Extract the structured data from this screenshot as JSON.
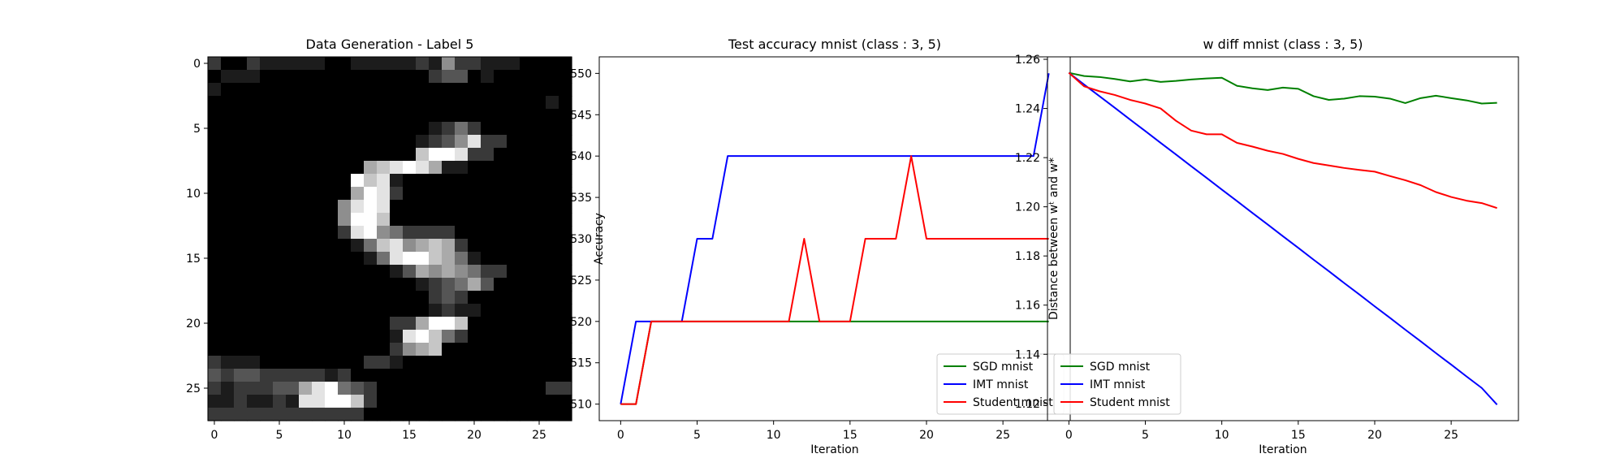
{
  "chart_data": [
    {
      "type": "heatmap",
      "title": "Data Generation - Label 5",
      "colormap": "gray",
      "xticks": [
        0,
        5,
        10,
        15,
        20,
        25
      ],
      "yticks": [
        0,
        5,
        10,
        15,
        20,
        25
      ],
      "grid_size": [
        28,
        28
      ],
      "grid": [
        "2002111110011111215221110000",
        "0111000000000000023301000000",
        "1000000000000000000000000000",
        "0000000000000000000000000010",
        "0000000000000000000000000000",
        "0000000000000000012420000000",
        "0000000000000000123582200000",
        "0000000000000000799822000000",
        "0000000000006789861100000000",
        "0000000000097810000000000000",
        "0000000000069820000000000000",
        "0000000000589800000000000000",
        "0000000000599700000000000000",
        "0000000000289542222000000000",
        "0000000000014785676200000000",
        "0000000000001489976410000000",
        "0000000000000013656542200000",
        "0000000000000000123463000000",
        "0000000000000000023200000000",
        "0000000000000000012110000000",
        "0000000000000022699700000000",
        "0000000000000018974200000000",
        "0000000000000025670000000000",
        "2111000000002210000000000000",
        "3233222221200000000000000000",
        "2122233689432000000000000022",
        "1121121889972000000000000000",
        "2222222222220000000000000000"
      ]
    },
    {
      "type": "line",
      "title": "Test accuracy mnist (class : 3, 5)",
      "xlabel": "Iteration",
      "ylabel": "Accuracy",
      "xlim": [
        -1.4,
        29.4
      ],
      "ylim": [
        0.508,
        0.552
      ],
      "xticks": [
        0,
        5,
        10,
        15,
        20,
        25
      ],
      "yticks": [
        0.51,
        0.515,
        0.52,
        0.525,
        0.53,
        0.535,
        0.54,
        0.545,
        0.55
      ],
      "legend_position": "lower-right",
      "x": [
        0,
        1,
        2,
        3,
        4,
        5,
        6,
        7,
        8,
        9,
        10,
        11,
        12,
        13,
        14,
        15,
        16,
        17,
        18,
        19,
        20,
        21,
        22,
        23,
        24,
        25,
        26,
        27,
        28
      ],
      "series": [
        {
          "name": "SGD mnist",
          "color": "#008000",
          "values": [
            0.51,
            0.51,
            0.52,
            0.52,
            0.52,
            0.52,
            0.52,
            0.52,
            0.52,
            0.52,
            0.52,
            0.52,
            0.52,
            0.52,
            0.52,
            0.52,
            0.52,
            0.52,
            0.52,
            0.52,
            0.52,
            0.52,
            0.52,
            0.52,
            0.52,
            0.52,
            0.52,
            0.52,
            0.52
          ]
        },
        {
          "name": "IMT mnist",
          "color": "#0000ff",
          "values": [
            0.51,
            0.52,
            0.52,
            0.52,
            0.52,
            0.53,
            0.53,
            0.54,
            0.54,
            0.54,
            0.54,
            0.54,
            0.54,
            0.54,
            0.54,
            0.54,
            0.54,
            0.54,
            0.54,
            0.54,
            0.54,
            0.54,
            0.54,
            0.54,
            0.54,
            0.54,
            0.54,
            0.54,
            0.55
          ]
        },
        {
          "name": "Student mnist",
          "color": "#ff0000",
          "values": [
            0.51,
            0.51,
            0.52,
            0.52,
            0.52,
            0.52,
            0.52,
            0.52,
            0.52,
            0.52,
            0.52,
            0.52,
            0.53,
            0.52,
            0.52,
            0.52,
            0.53,
            0.53,
            0.53,
            0.54,
            0.53,
            0.53,
            0.53,
            0.53,
            0.53,
            0.53,
            0.53,
            0.53,
            0.53
          ]
        }
      ]
    },
    {
      "type": "line",
      "title": "w diff mnist (class : 3, 5)",
      "xlabel": "Iteration",
      "ylabel": "Distance between wᵗ and w*",
      "xlim": [
        -1.4,
        29.4
      ],
      "ylim": [
        1.113,
        1.261
      ],
      "xticks": [
        0,
        5,
        10,
        15,
        20,
        25
      ],
      "yticks": [
        1.12,
        1.14,
        1.16,
        1.18,
        1.2,
        1.22,
        1.24,
        1.26
      ],
      "legend_position": "lower-left",
      "x": [
        0,
        1,
        2,
        3,
        4,
        5,
        6,
        7,
        8,
        9,
        10,
        11,
        12,
        13,
        14,
        15,
        16,
        17,
        18,
        19,
        20,
        21,
        22,
        23,
        24,
        25,
        26,
        27,
        28
      ],
      "series": [
        {
          "name": "SGD mnist",
          "color": "#008000",
          "values": [
            1.2545,
            1.2532,
            1.2528,
            1.252,
            1.251,
            1.2518,
            1.2508,
            1.2512,
            1.2518,
            1.2522,
            1.2525,
            1.2492,
            1.2482,
            1.2475,
            1.2485,
            1.248,
            1.245,
            1.2435,
            1.244,
            1.245,
            1.2448,
            1.244,
            1.2422,
            1.2442,
            1.2452,
            1.2442,
            1.2433,
            1.242,
            1.2423
          ]
        },
        {
          "name": "IMT mnist",
          "color": "#0000ff",
          "values": [
            1.2545,
            1.2497,
            1.245,
            1.2403,
            1.2355,
            1.2308,
            1.226,
            1.2213,
            1.2165,
            1.2118,
            1.207,
            1.2023,
            1.1975,
            1.1928,
            1.188,
            1.1833,
            1.1785,
            1.1738,
            1.169,
            1.1643,
            1.1595,
            1.1548,
            1.15,
            1.1453,
            1.1405,
            1.1358,
            1.131,
            1.1263,
            1.1195
          ]
        },
        {
          "name": "Student mnist",
          "color": "#ff0000",
          "values": [
            1.2545,
            1.249,
            1.247,
            1.2455,
            1.2435,
            1.242,
            1.24,
            1.235,
            1.231,
            1.2295,
            1.2295,
            1.226,
            1.2245,
            1.2228,
            1.2215,
            1.2195,
            1.2178,
            1.2168,
            1.2158,
            1.215,
            1.2143,
            1.2125,
            1.2108,
            1.2088,
            1.206,
            1.204,
            1.2025,
            1.2015,
            1.1995
          ]
        }
      ]
    }
  ]
}
